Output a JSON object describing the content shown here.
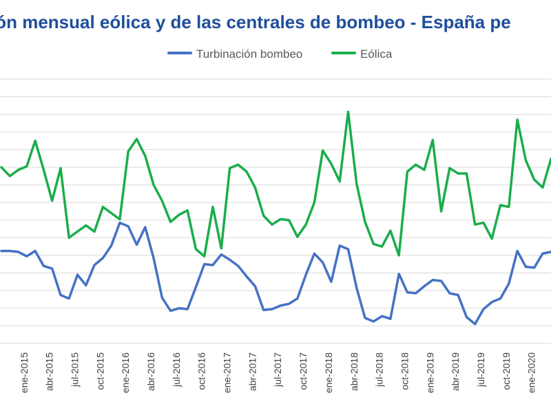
{
  "chart_data": {
    "type": "line",
    "title": "ión mensual eólica y de las centrales de bombeo - España pe",
    "xlabel": "",
    "ylabel": "",
    "grid": true,
    "legend_position": "top",
    "x": [
      "oct-2014",
      "nov-2014",
      "dic-2014",
      "ene-2015",
      "feb-2015",
      "mar-2015",
      "abr-2015",
      "may-2015",
      "jun-2015",
      "jul-2015",
      "ago-2015",
      "sep-2015",
      "oct-2015",
      "nov-2015",
      "dic-2015",
      "ene-2016",
      "feb-2016",
      "mar-2016",
      "abr-2016",
      "may-2016",
      "jun-2016",
      "jul-2016",
      "ago-2016",
      "sep-2016",
      "oct-2016",
      "nov-2016",
      "dic-2016",
      "ene-2017",
      "feb-2017",
      "mar-2017",
      "abr-2017",
      "may-2017",
      "jun-2017",
      "jul-2017",
      "ago-2017",
      "sep-2017",
      "oct-2017",
      "nov-2017",
      "dic-2017",
      "ene-2018",
      "feb-2018",
      "mar-2018",
      "abr-2018",
      "may-2018",
      "jun-2018",
      "jul-2018",
      "ago-2018",
      "sep-2018",
      "oct-2018",
      "nov-2018",
      "dic-2018",
      "ene-2019",
      "feb-2019",
      "mar-2019",
      "abr-2019",
      "may-2019",
      "jun-2019",
      "jul-2019",
      "ago-2019",
      "sep-2019",
      "oct-2019",
      "nov-2019",
      "dic-2019",
      "ene-2020",
      "feb-2020",
      "mar-2020",
      "abr-2020"
    ],
    "tick_labels": [
      "ene-2015",
      "abr-2015",
      "jul-2015",
      "oct-2015",
      "ene-2016",
      "abr-2016",
      "jul-2016",
      "oct-2016",
      "ene-2017",
      "abr-2017",
      "jul-2017",
      "oct-2017",
      "ene-2018",
      "abr-2018",
      "jul-2018",
      "oct-2018",
      "ene-2019",
      "abr-2019",
      "jul-2019",
      "oct-2019",
      "ene-2020"
    ],
    "series": [
      {
        "name": "Turbinación bombeo",
        "color": "#4472c4",
        "values": [
          5.25,
          5.25,
          5.2,
          4.95,
          5.25,
          4.4,
          4.25,
          2.75,
          2.55,
          3.9,
          3.3,
          4.45,
          4.85,
          5.55,
          6.85,
          6.65,
          5.6,
          6.6,
          4.85,
          2.6,
          1.85,
          2.0,
          1.95,
          3.2,
          4.5,
          4.45,
          5.05,
          4.75,
          4.4,
          3.8,
          3.25,
          1.9,
          1.95,
          2.15,
          2.25,
          2.55,
          3.9,
          5.1,
          4.6,
          3.5,
          5.55,
          5.35,
          3.15,
          1.45,
          1.25,
          1.55,
          1.4,
          3.95,
          2.9,
          2.85,
          3.25,
          3.6,
          3.55,
          2.85,
          2.75,
          1.5,
          1.1,
          1.95,
          2.35,
          2.55,
          3.4,
          5.25,
          4.35,
          4.3,
          5.1,
          5.2,
          5.1
        ]
      },
      {
        "name": "Eólica",
        "color": "#1aad4b",
        "values": [
          10.0,
          9.5,
          9.85,
          10.05,
          11.5,
          9.85,
          8.1,
          9.95,
          6.0,
          6.35,
          6.7,
          6.35,
          7.75,
          7.4,
          7.05,
          10.9,
          11.6,
          10.65,
          9.0,
          8.1,
          6.9,
          7.3,
          7.55,
          5.35,
          4.95,
          7.75,
          5.4,
          9.95,
          10.15,
          9.75,
          8.85,
          7.25,
          6.75,
          7.05,
          7.0,
          6.05,
          6.75,
          8.0,
          10.95,
          10.2,
          9.2,
          13.15,
          9.05,
          6.9,
          5.65,
          5.5,
          6.4,
          5.0,
          9.75,
          10.15,
          9.85,
          11.55,
          7.5,
          9.95,
          9.65,
          9.65,
          6.75,
          6.85,
          5.95,
          7.85,
          7.75,
          12.7,
          10.4,
          9.3,
          8.85,
          10.5,
          9.2
        ]
      }
    ],
    "ylim": [
      0,
      15
    ],
    "yticks": [
      0,
      1,
      2,
      3,
      4,
      5,
      6,
      7,
      8,
      9,
      10,
      11,
      12,
      13,
      14,
      15
    ]
  }
}
